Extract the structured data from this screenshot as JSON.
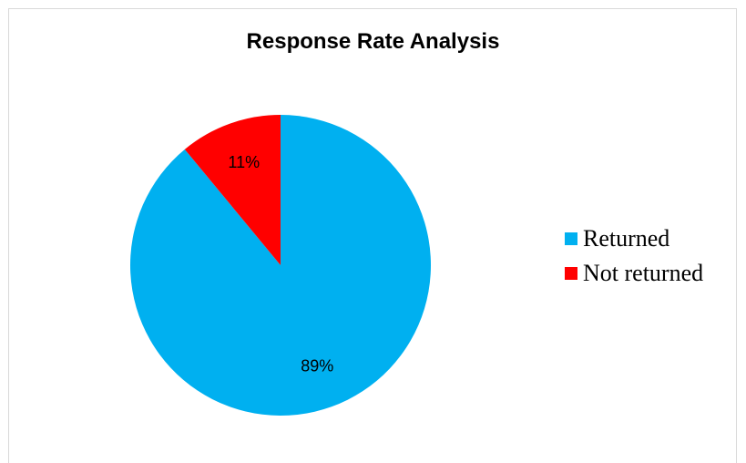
{
  "chart_data": {
    "type": "pie",
    "title": "Response Rate Analysis",
    "categories": [
      "Returned",
      "Not returned"
    ],
    "values": [
      89,
      11
    ],
    "labels": [
      "89%",
      "11%"
    ],
    "colors": [
      "#00b0f0",
      "#ff0000"
    ],
    "legend_position": "right"
  }
}
